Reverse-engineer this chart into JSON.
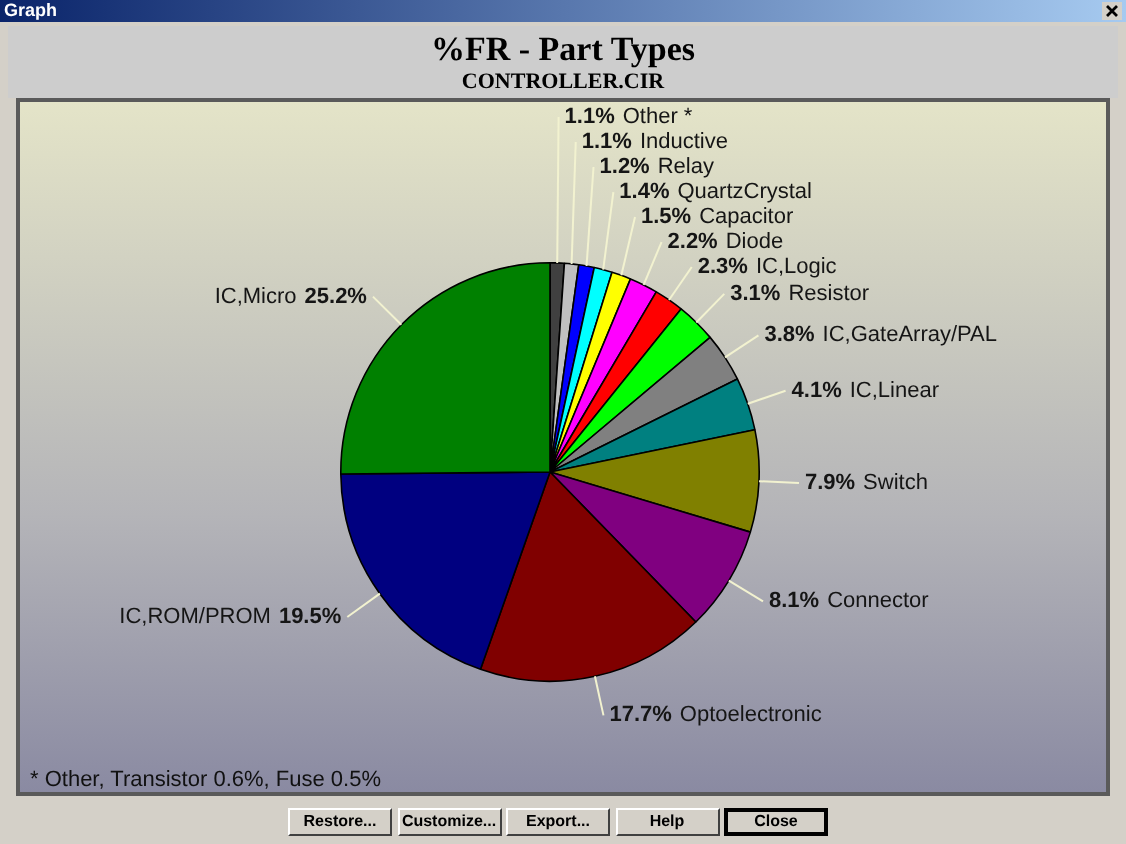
{
  "chart_data": {
    "type": "pie",
    "title": "%FR - Part Types",
    "subtitle": "CONTROLLER.CIR",
    "categories": [
      "Other *",
      "Inductive",
      "Relay",
      "QuartzCrystal",
      "Capacitor",
      "Diode",
      "IC,Logic",
      "Resistor",
      "IC,GateArray/PAL",
      "IC,Linear",
      "Switch",
      "Connector",
      "Optoelectronic",
      "IC,ROM/PROM",
      "IC,Micro"
    ],
    "values": [
      1.1,
      1.1,
      1.2,
      1.4,
      1.5,
      2.2,
      2.3,
      3.1,
      3.8,
      4.1,
      7.9,
      8.1,
      17.7,
      19.5,
      25.2
    ],
    "value_labels": [
      "1.1%",
      "1.1%",
      "1.2%",
      "1.4%",
      "1.5%",
      "2.2%",
      "2.3%",
      "3.1%",
      "3.8%",
      "4.1%",
      "7.9%",
      "8.1%",
      "17.7%",
      "19.5%",
      "25.2%"
    ],
    "colors": [
      "#404040",
      "#c0c0c0",
      "#0000ff",
      "#00ffff",
      "#ffff00",
      "#ff00ff",
      "#ff0000",
      "#00ff00",
      "#808080",
      "#008080",
      "#808000",
      "#800080",
      "#800000",
      "#000080",
      "#008000"
    ],
    "annotations": [
      "Graph",
      "* Other, Transistor 0.6%, Fuse 0.5%",
      "Restore...",
      "Customize...",
      "Export...",
      "Help",
      "Close"
    ]
  }
}
